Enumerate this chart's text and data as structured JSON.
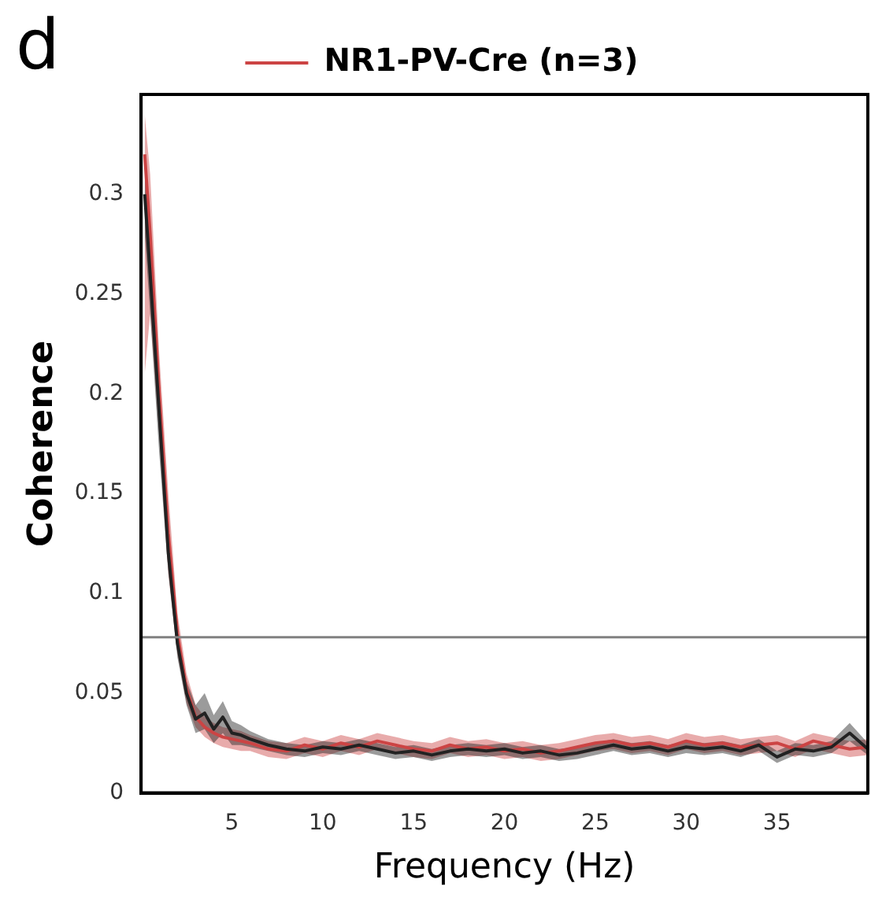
{
  "chart_data": {
    "type": "line",
    "xlabel": "Frequency (Hz)",
    "ylabel": "Coherence",
    "annotations": [
      "d"
    ],
    "xlim": [
      0,
      40
    ],
    "xticks": [
      5,
      10,
      15,
      20,
      25,
      30,
      35
    ],
    "ylim": [
      0,
      0.35
    ],
    "yticks": [
      0,
      0.05,
      0.1,
      0.15,
      0.2,
      0.25,
      0.3
    ],
    "grid": false,
    "legend": "top",
    "marker": "none",
    "line_style": "solid",
    "ref_lines": [
      {
        "axis": "y",
        "value": 0.078,
        "color": "#808080"
      }
    ],
    "series": [
      {
        "color": "#222222",
        "x": [
          0.2,
          0.5,
          1,
          1.5,
          2,
          2.5,
          3,
          3.5,
          4,
          4.5,
          5,
          5.5,
          6,
          7,
          8,
          9,
          10,
          11,
          12,
          13,
          14,
          15,
          16,
          17,
          18,
          19,
          20,
          21,
          22,
          23,
          24,
          25,
          26,
          27,
          28,
          29,
          30,
          31,
          32,
          33,
          34,
          35,
          36,
          37,
          38,
          39,
          40
        ],
        "values": [
          0.3,
          0.26,
          0.19,
          0.12,
          0.075,
          0.05,
          0.037,
          0.04,
          0.032,
          0.038,
          0.03,
          0.029,
          0.027,
          0.024,
          0.022,
          0.021,
          0.023,
          0.022,
          0.024,
          0.022,
          0.02,
          0.021,
          0.019,
          0.021,
          0.022,
          0.021,
          0.022,
          0.02,
          0.021,
          0.019,
          0.02,
          0.022,
          0.024,
          0.022,
          0.023,
          0.021,
          0.023,
          0.022,
          0.023,
          0.021,
          0.024,
          0.018,
          0.022,
          0.021,
          0.023,
          0.03,
          0.022
        ],
        "lower": [
          0.28,
          0.24,
          0.17,
          0.11,
          0.068,
          0.044,
          0.03,
          0.032,
          0.025,
          0.03,
          0.024,
          0.024,
          0.023,
          0.021,
          0.019,
          0.018,
          0.02,
          0.019,
          0.021,
          0.019,
          0.017,
          0.018,
          0.016,
          0.018,
          0.019,
          0.018,
          0.019,
          0.017,
          0.018,
          0.016,
          0.017,
          0.019,
          0.021,
          0.019,
          0.02,
          0.018,
          0.02,
          0.019,
          0.02,
          0.018,
          0.021,
          0.015,
          0.019,
          0.018,
          0.02,
          0.026,
          0.019
        ],
        "upper": [
          0.32,
          0.28,
          0.21,
          0.13,
          0.082,
          0.056,
          0.044,
          0.05,
          0.039,
          0.046,
          0.036,
          0.034,
          0.031,
          0.027,
          0.025,
          0.024,
          0.026,
          0.025,
          0.027,
          0.025,
          0.023,
          0.024,
          0.022,
          0.024,
          0.025,
          0.024,
          0.025,
          0.023,
          0.024,
          0.022,
          0.023,
          0.025,
          0.027,
          0.025,
          0.026,
          0.024,
          0.026,
          0.025,
          0.026,
          0.024,
          0.027,
          0.021,
          0.025,
          0.024,
          0.026,
          0.035,
          0.025
        ]
      },
      {
        "name": "NR1-PV-Cre (n=3)",
        "color": "#cc4444",
        "x": [
          0.2,
          0.5,
          1,
          1.5,
          2,
          2.5,
          3,
          3.5,
          4,
          4.5,
          5,
          5.5,
          6,
          7,
          8,
          9,
          10,
          11,
          12,
          13,
          14,
          15,
          16,
          17,
          18,
          19,
          20,
          21,
          22,
          23,
          24,
          25,
          26,
          27,
          28,
          29,
          30,
          31,
          32,
          33,
          34,
          35,
          36,
          37,
          38,
          39,
          40
        ],
        "values": [
          0.32,
          0.28,
          0.2,
          0.13,
          0.08,
          0.052,
          0.038,
          0.033,
          0.03,
          0.028,
          0.027,
          0.026,
          0.025,
          0.022,
          0.021,
          0.024,
          0.022,
          0.025,
          0.023,
          0.026,
          0.024,
          0.022,
          0.021,
          0.024,
          0.022,
          0.023,
          0.021,
          0.022,
          0.02,
          0.021,
          0.023,
          0.025,
          0.026,
          0.024,
          0.025,
          0.023,
          0.026,
          0.024,
          0.025,
          0.023,
          0.024,
          0.025,
          0.022,
          0.026,
          0.024,
          0.022,
          0.023
        ],
        "lower": [
          0.21,
          0.24,
          0.18,
          0.11,
          0.07,
          0.045,
          0.033,
          0.028,
          0.025,
          0.023,
          0.022,
          0.021,
          0.021,
          0.018,
          0.017,
          0.02,
          0.018,
          0.021,
          0.019,
          0.022,
          0.02,
          0.018,
          0.017,
          0.02,
          0.018,
          0.019,
          0.017,
          0.018,
          0.016,
          0.017,
          0.019,
          0.021,
          0.022,
          0.02,
          0.021,
          0.019,
          0.022,
          0.02,
          0.021,
          0.019,
          0.02,
          0.021,
          0.018,
          0.022,
          0.02,
          0.018,
          0.019
        ],
        "upper": [
          0.34,
          0.31,
          0.22,
          0.15,
          0.09,
          0.06,
          0.044,
          0.038,
          0.035,
          0.033,
          0.032,
          0.031,
          0.029,
          0.026,
          0.025,
          0.028,
          0.026,
          0.029,
          0.027,
          0.03,
          0.028,
          0.026,
          0.025,
          0.028,
          0.026,
          0.027,
          0.025,
          0.026,
          0.024,
          0.025,
          0.027,
          0.029,
          0.03,
          0.028,
          0.029,
          0.027,
          0.03,
          0.028,
          0.029,
          0.027,
          0.028,
          0.029,
          0.026,
          0.03,
          0.028,
          0.026,
          0.027
        ]
      }
    ]
  }
}
